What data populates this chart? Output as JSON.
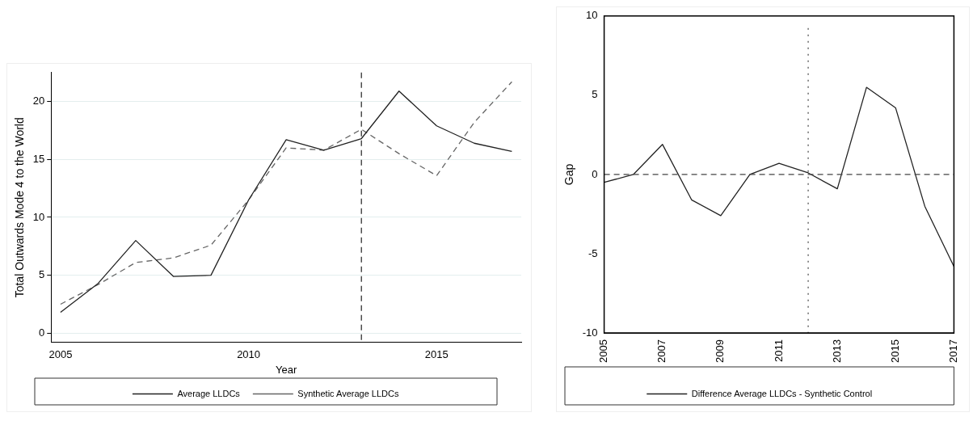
{
  "chart_data": [
    {
      "type": "line",
      "xlabel": "Year",
      "ylabel": "Total Outwards Mode 4 to the World",
      "x": [
        2005,
        2006,
        2007,
        2008,
        2009,
        2010,
        2011,
        2012,
        2013,
        2014,
        2015,
        2016,
        2017
      ],
      "series": [
        {
          "name": "Average LLDCs",
          "color": "#222222",
          "line_style": "solid",
          "values": [
            1.8,
            4.3,
            8.0,
            4.9,
            5.0,
            11.5,
            16.7,
            15.8,
            16.8,
            20.9,
            17.9,
            16.4,
            15.7
          ]
        },
        {
          "name": "Synthetic Average LLDCs",
          "color": "#666666",
          "line_style": "dashed",
          "values": [
            2.5,
            4.2,
            6.1,
            6.5,
            7.6,
            11.5,
            16.0,
            15.8,
            17.6,
            15.5,
            13.6,
            18.2,
            21.7
          ]
        }
      ],
      "xlim": [
        2004.75,
        2017.25
      ],
      "xticks": [
        2005,
        2010,
        2015
      ],
      "ylim": [
        -0.8,
        22.5
      ],
      "yticks": [
        0,
        5,
        10,
        15,
        20
      ],
      "grid": "y",
      "legend": "bottom",
      "ref_lines": [
        {
          "axis": "x",
          "value": 2013,
          "color": "#222222",
          "line_style": "dashed"
        }
      ]
    },
    {
      "type": "line",
      "ylabel": "Gap",
      "x": [
        2005,
        2006,
        2007,
        2008,
        2009,
        2010,
        2011,
        2012,
        2013,
        2014,
        2015,
        2016,
        2017
      ],
      "series": [
        {
          "name": "Difference Average LLDCs - Synthetic Control",
          "color": "#222222",
          "line_style": "solid",
          "values": [
            -0.5,
            0.0,
            1.9,
            -1.6,
            -2.6,
            0.0,
            0.7,
            0.1,
            -0.9,
            5.5,
            4.2,
            -2.0,
            -5.8
          ]
        }
      ],
      "xlim": [
        2005,
        2017
      ],
      "xticks": [
        2005,
        2007,
        2009,
        2011,
        2013,
        2015,
        2017
      ],
      "ylim": [
        -10,
        10
      ],
      "yticks": [
        -10,
        -5,
        0,
        5,
        10
      ],
      "grid": false,
      "legend": "bottom",
      "ref_lines": [
        {
          "axis": "y",
          "value": 0,
          "color": "#444444",
          "line_style": "dashed"
        },
        {
          "axis": "x",
          "value": 2012,
          "color": "#444444",
          "line_style": "dotted"
        }
      ]
    }
  ]
}
